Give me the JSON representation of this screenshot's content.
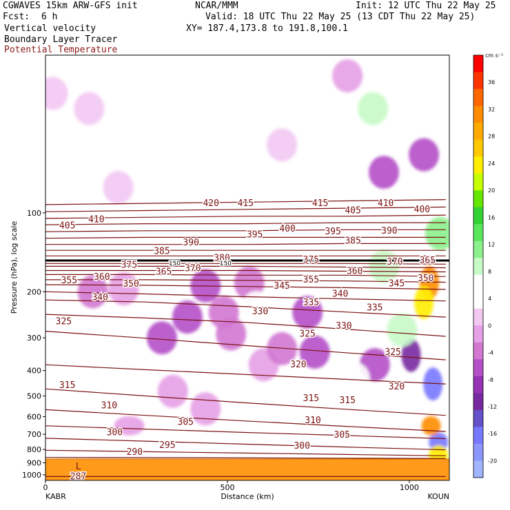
{
  "header": {
    "model": "CGWAVES 15km ARW-GFS init",
    "center": "NCAR/MMM",
    "init": "Init: 12 UTC Thu 22 May 25",
    "fcst_label": "Fcst:",
    "fcst_value": "6 h",
    "valid": "Valid: 18 UTC Thu 22 May 25 (13 CDT Thu 22 May 25)",
    "fields": [
      "Vertical velocity",
      "Boundary Layer Tracer",
      "Potential Temperature"
    ],
    "xy": "XY= 187.4,173.8 to 191.8,100.1"
  },
  "axes": {
    "ylabel": "Pressure (hPa), log scale",
    "xlabel": "Distance (km)",
    "left_station": "KABR",
    "right_station": "KOUN"
  },
  "colorbar": {
    "units": "cm s⁻¹",
    "colors": [
      "#ff0000",
      "#ff3300",
      "#ff6600",
      "#ff8c00",
      "#ffaa00",
      "#ffc800",
      "#ffee00",
      "#c8ff00",
      "#64e600",
      "#32d232",
      "#5ae65a",
      "#8cf08c",
      "#c8fac8",
      "#ffffff",
      "#ffffff",
      "#f2c8f2",
      "#e6a0e6",
      "#d278d2",
      "#b450c8",
      "#9632b4",
      "#7828a0",
      "#6450c8",
      "#7878ff",
      "#8c96ff",
      "#a0b4ff"
    ],
    "labels": [
      "36",
      "32",
      "28",
      "24",
      "20",
      "16",
      "12",
      "8",
      "4",
      "0",
      "-4",
      "-8",
      "-12",
      "-16",
      "-20"
    ]
  },
  "chart_data": {
    "type": "heatmap",
    "title": "Vertical velocity / Boundary Layer Tracer / Potential Temperature",
    "xlabel": "Distance (km)",
    "ylabel": "Pressure (hPa), log scale",
    "x_ticks": [
      0,
      500,
      1000
    ],
    "xlim": [
      0,
      1110
    ],
    "y_ticks": [
      100,
      200,
      300,
      400,
      500,
      600,
      700,
      800,
      900,
      1000
    ],
    "ylim": [
      1050,
      25
    ],
    "y_scale": "log",
    "grid": false,
    "legend_position": "right",
    "surface_pressure": 870,
    "theta_contours": [
      {
        "theta": 287,
        "p": [
          1015,
          1015,
          1015,
          1015,
          1015
        ]
      },
      {
        "theta": 290,
        "p": [
          858,
          860,
          862,
          864,
          866
        ]
      },
      {
        "theta": 295,
        "p": [
          806,
          816,
          826,
          836,
          846
        ]
      },
      {
        "theta": 300,
        "p": [
          725,
          744,
          764,
          783,
          803
        ]
      },
      {
        "theta": 305,
        "p": [
          650,
          669,
          689,
          708,
          728
        ]
      },
      {
        "theta": 310,
        "p": [
          564,
          593,
          623,
          653,
          683
        ]
      },
      {
        "theta": 315,
        "p": [
          470,
          500,
          531,
          562,
          593
        ]
      },
      {
        "theta": 320,
        "p": [
          380,
          397,
          414,
          432,
          450
        ]
      },
      {
        "theta": 325,
        "p": [
          283,
          301,
          321,
          342,
          364
        ]
      },
      {
        "theta": 330,
        "p": [
          244,
          252,
          262,
          278,
          296
        ]
      },
      {
        "theta": 335,
        "p": [
          215,
          219,
          228,
          239,
          250
        ]
      },
      {
        "theta": 340,
        "p": [
          200,
          204,
          209,
          213,
          217
        ]
      },
      {
        "theta": 345,
        "p": [
          188,
          189,
          191,
          193,
          196
        ]
      },
      {
        "theta": 350,
        "p": [
          180,
          180,
          181,
          182,
          184
        ]
      },
      {
        "theta": 355,
        "p": [
          172,
          172,
          173,
          173,
          175
        ]
      },
      {
        "theta": 360,
        "p": [
          166,
          166,
          166,
          167,
          168
        ]
      },
      {
        "theta": 365,
        "p": [
          160,
          160,
          160,
          161,
          162
        ]
      },
      {
        "theta": 370,
        "p": [
          156,
          156,
          156,
          156,
          157
        ]
      },
      {
        "theta": 375,
        "p": [
          152,
          152,
          152,
          152,
          152
        ]
      },
      {
        "theta": 380,
        "p": [
          146,
          146,
          146,
          146,
          146
        ]
      },
      {
        "theta": 385,
        "p": [
          139,
          139,
          139,
          139,
          139
        ]
      },
      {
        "theta": 390,
        "p": [
          132,
          132,
          132,
          131,
          131
        ]
      },
      {
        "theta": 395,
        "p": [
          125,
          124,
          124,
          124,
          124
        ]
      },
      {
        "theta": 400,
        "p": [
          118,
          117,
          117,
          116,
          116
        ]
      },
      {
        "theta": 405,
        "p": [
          111,
          110,
          110,
          109,
          109
        ]
      },
      {
        "theta": 410,
        "p": [
          105,
          104,
          103,
          103,
          102
        ]
      },
      {
        "theta": 415,
        "p": [
          99,
          98,
          97,
          96,
          95
        ]
      },
      {
        "theta": 420,
        "p": [
          93,
          92,
          91,
          90,
          89
        ]
      }
    ],
    "theta_x": [
      0,
      275,
      550,
      825,
      1100
    ],
    "contour_labels": [
      {
        "text": "420",
        "x": 455,
        "p": 92
      },
      {
        "text": "415",
        "x": 550,
        "p": 92
      },
      {
        "text": "415",
        "x": 755,
        "p": 92
      },
      {
        "text": "410",
        "x": 935,
        "p": 92
      },
      {
        "text": "400",
        "x": 1035,
        "p": 97
      },
      {
        "text": "405",
        "x": 60,
        "p": 112
      },
      {
        "text": "410",
        "x": 140,
        "p": 106
      },
      {
        "text": "390",
        "x": 400,
        "p": 130
      },
      {
        "text": "395",
        "x": 575,
        "p": 121
      },
      {
        "text": "400",
        "x": 665,
        "p": 115
      },
      {
        "text": "395",
        "x": 790,
        "p": 118
      },
      {
        "text": "405",
        "x": 845,
        "p": 98
      },
      {
        "text": "390",
        "x": 945,
        "p": 117
      },
      {
        "text": "385",
        "x": 320,
        "p": 140
      },
      {
        "text": "385",
        "x": 845,
        "p": 128
      },
      {
        "text": "380",
        "x": 485,
        "p": 149
      },
      {
        "text": "375",
        "x": 230,
        "p": 158
      },
      {
        "text": "375",
        "x": 730,
        "p": 151
      },
      {
        "text": "370",
        "x": 405,
        "p": 163
      },
      {
        "text": "370",
        "x": 960,
        "p": 154
      },
      {
        "text": "365",
        "x": 325,
        "p": 168
      },
      {
        "text": "365",
        "x": 1050,
        "p": 152
      },
      {
        "text": "360",
        "x": 155,
        "p": 176
      },
      {
        "text": "360",
        "x": 850,
        "p": 167
      },
      {
        "text": "355",
        "x": 65,
        "p": 181
      },
      {
        "text": "355",
        "x": 730,
        "p": 180
      },
      {
        "text": "350",
        "x": 235,
        "p": 187
      },
      {
        "text": "350",
        "x": 1045,
        "p": 178
      },
      {
        "text": "345",
        "x": 650,
        "p": 190
      },
      {
        "text": "345",
        "x": 965,
        "p": 186
      },
      {
        "text": "340",
        "x": 150,
        "p": 210
      },
      {
        "text": "340",
        "x": 810,
        "p": 204
      },
      {
        "text": "335",
        "x": 730,
        "p": 220
      },
      {
        "text": "335",
        "x": 905,
        "p": 230
      },
      {
        "text": "330",
        "x": 590,
        "p": 238
      },
      {
        "text": "330",
        "x": 820,
        "p": 270
      },
      {
        "text": "325",
        "x": 50,
        "p": 260
      },
      {
        "text": "325",
        "x": 720,
        "p": 290
      },
      {
        "text": "325",
        "x": 955,
        "p": 340
      },
      {
        "text": "320",
        "x": 695,
        "p": 380
      },
      {
        "text": "320",
        "x": 965,
        "p": 460
      },
      {
        "text": "315",
        "x": 60,
        "p": 455
      },
      {
        "text": "315",
        "x": 730,
        "p": 510
      },
      {
        "text": "315",
        "x": 830,
        "p": 520
      },
      {
        "text": "310",
        "x": 175,
        "p": 545
      },
      {
        "text": "310",
        "x": 735,
        "p": 620
      },
      {
        "text": "305",
        "x": 385,
        "p": 630
      },
      {
        "text": "305",
        "x": 815,
        "p": 705
      },
      {
        "text": "300",
        "x": 190,
        "p": 690
      },
      {
        "text": "300",
        "x": 705,
        "p": 775
      },
      {
        "text": "295",
        "x": 335,
        "p": 770
      },
      {
        "text": "290",
        "x": 245,
        "p": 820
      },
      {
        "text": "287",
        "x": 90,
        "p": 1015
      }
    ],
    "minimum_marker": {
      "text": "L",
      "x": 90,
      "p": 930
    },
    "band_labels": [
      {
        "text": "150",
        "x": 355,
        "p": 155
      },
      {
        "text": "150",
        "x": 495,
        "p": 155
      }
    ],
    "velocity_blobs": [
      {
        "x": 130,
        "p": 200,
        "value": -6
      },
      {
        "x": 215,
        "p": 195,
        "value": -4
      },
      {
        "x": 320,
        "p": 300,
        "value": -10
      },
      {
        "x": 390,
        "p": 250,
        "value": -8
      },
      {
        "x": 510,
        "p": 290,
        "value": -6
      },
      {
        "x": 490,
        "p": 240,
        "value": -6
      },
      {
        "x": 600,
        "p": 380,
        "value": -4
      },
      {
        "x": 650,
        "p": 330,
        "value": -6
      },
      {
        "x": 740,
        "p": 340,
        "value": -10
      },
      {
        "x": 720,
        "p": 240,
        "value": -8
      },
      {
        "x": 905,
        "p": 380,
        "value": -10
      },
      {
        "x": 1005,
        "p": 350,
        "value": -14
      },
      {
        "x": 1065,
        "p": 450,
        "value": -20
      },
      {
        "x": 1080,
        "p": 750,
        "value": -18
      },
      {
        "x": 440,
        "p": 190,
        "value": -8
      },
      {
        "x": 560,
        "p": 185,
        "value": -6
      },
      {
        "x": 350,
        "p": 480,
        "value": -4
      },
      {
        "x": 440,
        "p": 560,
        "value": -4
      },
      {
        "x": 230,
        "p": 650,
        "value": -4
      },
      {
        "x": 1055,
        "p": 185,
        "value": 28
      },
      {
        "x": 1040,
        "p": 220,
        "value": 20
      },
      {
        "x": 1060,
        "p": 650,
        "value": 28
      },
      {
        "x": 1080,
        "p": 840,
        "value": 20
      },
      {
        "x": 1085,
        "p": 120,
        "value": 8
      },
      {
        "x": 980,
        "p": 280,
        "value": 6
      },
      {
        "x": 930,
        "p": 160,
        "value": 6
      },
      {
        "x": 870,
        "p": 240,
        "value": 4
      },
      {
        "x": 850,
        "p": 430,
        "value": 4
      },
      {
        "x": 720,
        "p": 500,
        "value": 4
      },
      {
        "x": 580,
        "p": 230,
        "value": 2
      },
      {
        "x": 430,
        "p": 40,
        "value": 4
      },
      {
        "x": 230,
        "p": 45,
        "value": 2
      },
      {
        "x": 900,
        "p": 40,
        "value": 6
      },
      {
        "x": 620,
        "p": 85,
        "value": 2
      },
      {
        "x": 200,
        "p": 80,
        "value": -2
      },
      {
        "x": 120,
        "p": 40,
        "value": -2
      },
      {
        "x": 650,
        "p": 55,
        "value": -2
      },
      {
        "x": 20,
        "p": 35,
        "value": -2
      },
      {
        "x": 1040,
        "p": 60,
        "value": -10
      },
      {
        "x": 930,
        "p": 70,
        "value": -8
      },
      {
        "x": 830,
        "p": 30,
        "value": -4
      }
    ]
  }
}
